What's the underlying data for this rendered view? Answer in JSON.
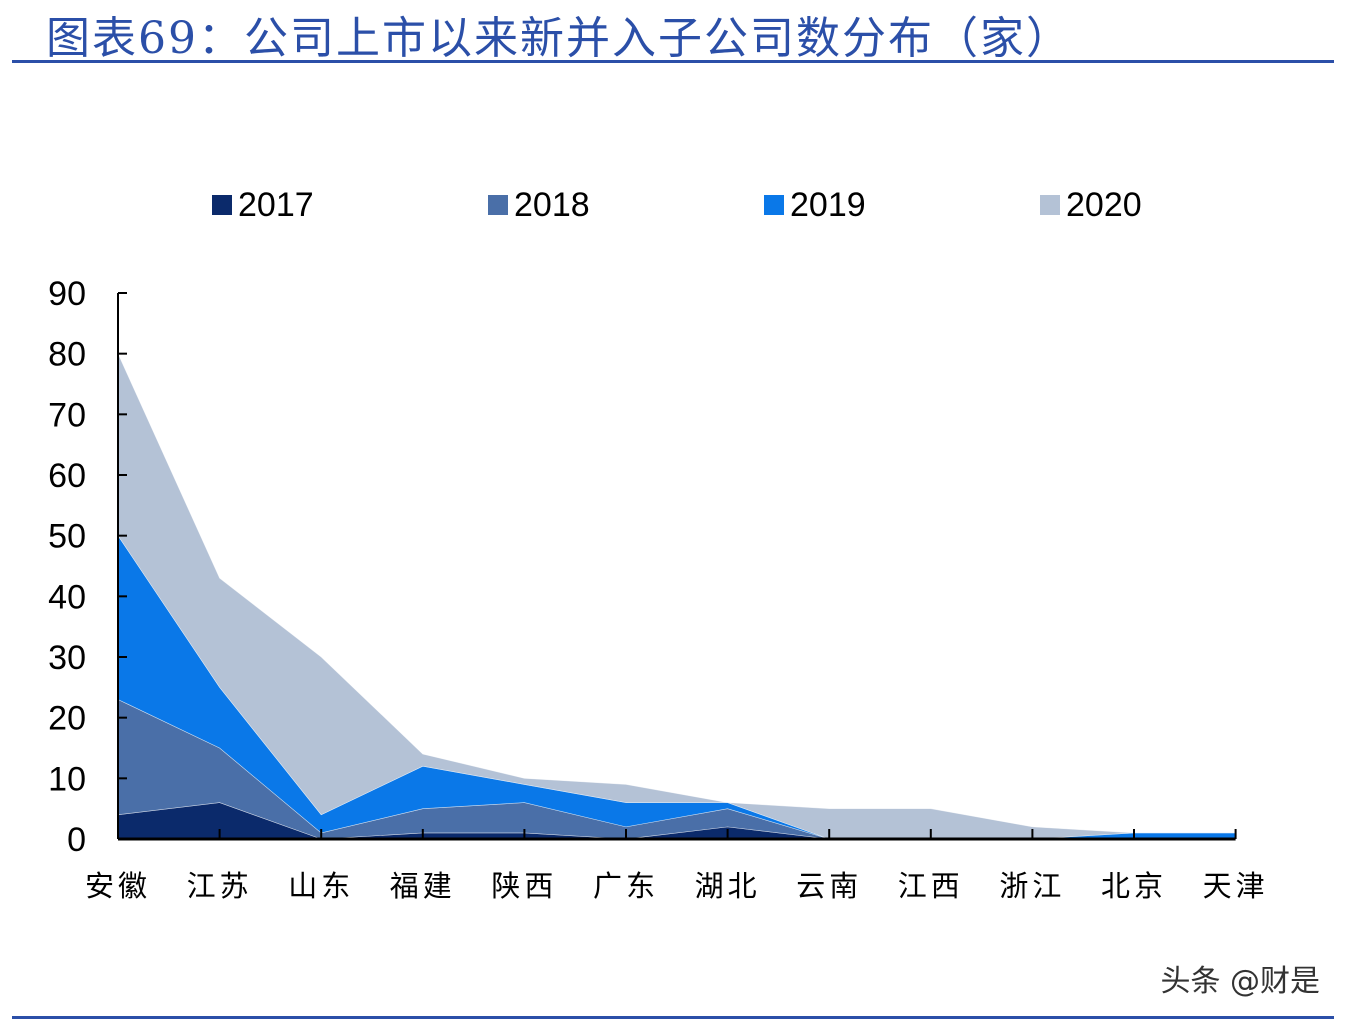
{
  "title": "图表69：公司上市以来新并入子公司数分布（家）",
  "watermark": "头条 @财是",
  "chart_data": {
    "type": "area",
    "stacked": true,
    "categories": [
      "安徽",
      "江苏",
      "山东",
      "福建",
      "陕西",
      "广东",
      "湖北",
      "云南",
      "江西",
      "浙江",
      "北京",
      "天津"
    ],
    "series": [
      {
        "name": "2017",
        "color": "#0b2a6b",
        "values": [
          4,
          6,
          0,
          1,
          1,
          0,
          2,
          0,
          0,
          0,
          0,
          0
        ]
      },
      {
        "name": "2018",
        "color": "#4a6fa8",
        "values": [
          19,
          9,
          1,
          4,
          5,
          2,
          3,
          0,
          0,
          0,
          0,
          0
        ]
      },
      {
        "name": "2019",
        "color": "#0a78e8",
        "values": [
          27,
          10,
          3,
          7,
          3,
          4,
          1,
          0,
          0,
          0,
          1,
          1
        ]
      },
      {
        "name": "2020",
        "color": "#b4c2d6",
        "values": [
          30,
          18,
          26,
          2,
          1,
          3,
          0,
          5,
          5,
          2,
          0,
          0
        ]
      }
    ],
    "ylim": [
      0,
      90
    ],
    "yticks": [
      0,
      10,
      20,
      30,
      40,
      50,
      60,
      70,
      80,
      90
    ],
    "grid": false,
    "legend": "top"
  }
}
